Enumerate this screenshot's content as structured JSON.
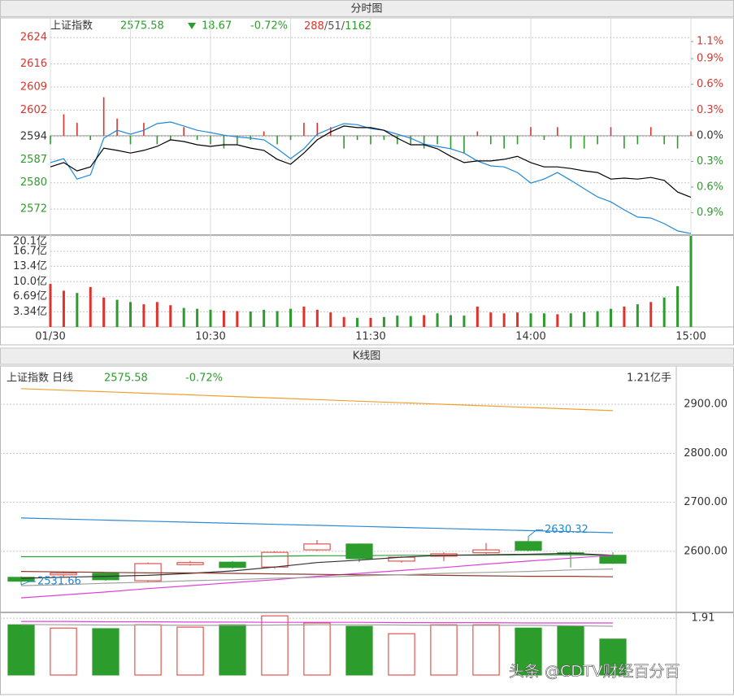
{
  "intraday_header": {
    "title": "分时图",
    "name": "上证指数",
    "price": "2575.58",
    "change": "18.67",
    "change_pct": "-0.72%",
    "up": "288",
    "flat": "51",
    "down": "1162"
  },
  "kline_header": {
    "title": "K线图",
    "name": "上证指数 日线",
    "price": "2575.58",
    "change_pct": "-0.72%",
    "volume": "1.21亿手"
  },
  "watermark": "头条 @CDTV财经百分百",
  "chart_data": [
    {
      "type": "line",
      "x": [
        0,
        5,
        10,
        15,
        20,
        25,
        30,
        35,
        40,
        45,
        50,
        55,
        60,
        65,
        70,
        75,
        80,
        85,
        90,
        95,
        100,
        105,
        110,
        115,
        120,
        125,
        130,
        135,
        140,
        145,
        150,
        155,
        160,
        165,
        170,
        175,
        180,
        185,
        190,
        195,
        200,
        205,
        210,
        215,
        220,
        225,
        230,
        235,
        240
      ],
      "xlim": [
        0,
        240
      ],
      "ylim": [
        2564.4,
        2626
      ],
      "yticks": [
        2624,
        2616,
        2609,
        2602,
        2594,
        2587,
        2580,
        2572
      ],
      "y2lim": [
        -1.151,
        1.224
      ],
      "y2ticks": [
        {
          "value": 1.1,
          "label": "1.1%"
        },
        {
          "value": 0.9,
          "label": "0.9%"
        },
        {
          "value": 0.6,
          "label": "0.6%"
        },
        {
          "value": 0.3,
          "label": "0.3%"
        },
        {
          "value": 0,
          "label": "0.0%"
        },
        {
          "value": -0.3,
          "label": "0.3%"
        },
        {
          "value": -0.6,
          "label": "0.6%"
        },
        {
          "value": -0.9,
          "label": "0.9%"
        }
      ],
      "up_color": "#e0322c",
      "down_color": "#2c9c2c",
      "flat_color": "#333333",
      "grid": true,
      "series": [
        {
          "type": "line",
          "color": "#000000",
          "values": [
            2584.8,
            2586.1,
            2583.6,
            2584.8,
            2590.5,
            2589.8,
            2589.0,
            2589.8,
            2591.0,
            2593.0,
            2592.5,
            2591.5,
            2591.0,
            2591.5,
            2591.5,
            2590.5,
            2589.8,
            2587.1,
            2585.6,
            2589.0,
            2593.0,
            2595.4,
            2597.2,
            2596.7,
            2596.7,
            2595.9,
            2593.5,
            2591.5,
            2591.5,
            2590.3,
            2588.0,
            2586.1,
            2586.6,
            2586.6,
            2587.1,
            2588.0,
            2586.1,
            2584.8,
            2584.8,
            2584.3,
            2583.6,
            2583.1,
            2581.1,
            2581.4,
            2581.1,
            2581.6,
            2580.7,
            2577.2,
            2575.58
          ]
        },
        {
          "type": "line",
          "color": "#1e88d8",
          "values": [
            2586.1,
            2587.3,
            2581.1,
            2582.4,
            2593.5,
            2595.9,
            2594.7,
            2595.9,
            2597.9,
            2598.4,
            2597.2,
            2595.9,
            2595.2,
            2594.4,
            2593.9,
            2593.5,
            2593.0,
            2590.3,
            2587.3,
            2590.3,
            2594.7,
            2596.4,
            2597.9,
            2597.6,
            2596.4,
            2595.9,
            2594.7,
            2593.5,
            2591.7,
            2591.0,
            2590.3,
            2589.0,
            2586.6,
            2585.1,
            2584.8,
            2583.1,
            2579.9,
            2581.1,
            2583.1,
            2580.7,
            2578.2,
            2575.7,
            2574.2,
            2571.8,
            2569.6,
            2569.3,
            2567.6,
            2565.4,
            2564.6
          ]
        },
        {
          "type": "bar",
          "axis": "y2",
          "values": [
            -0.1,
            0.25,
            0.15,
            -0.05,
            0.45,
            0.2,
            -0.1,
            0.15,
            -0.1,
            -0.05,
            0.1,
            -0.05,
            -0.1,
            -0.15,
            -0.1,
            -0.05,
            0.05,
            -0.1,
            -0.05,
            0.15,
            0.15,
            0.1,
            -0.15,
            -0.05,
            -0.1,
            -0.05,
            -0.1,
            -0.1,
            -0.15,
            -0.1,
            -0.15,
            -0.2,
            0.05,
            -0.1,
            -0.15,
            -0.1,
            0.1,
            -0.05,
            0.1,
            -0.15,
            -0.15,
            -0.1,
            0.1,
            -0.15,
            -0.1,
            0.1,
            -0.1,
            -0.15,
            0.05
          ]
        }
      ]
    },
    {
      "type": "bar",
      "x": [
        0,
        5,
        10,
        15,
        20,
        25,
        30,
        35,
        40,
        45,
        50,
        55,
        60,
        65,
        70,
        75,
        80,
        85,
        90,
        95,
        100,
        105,
        110,
        115,
        120,
        125,
        130,
        135,
        140,
        145,
        150,
        155,
        160,
        165,
        170,
        175,
        180,
        185,
        190,
        195,
        200,
        205,
        210,
        215,
        220,
        225,
        230,
        235,
        240
      ],
      "xlim": [
        0,
        240
      ],
      "xticks": [
        {
          "value": 0,
          "label": "01/30"
        },
        {
          "value": 30,
          "label": null
        },
        {
          "value": 60,
          "label": "10:30"
        },
        {
          "value": 90,
          "label": null
        },
        {
          "value": 120,
          "label": "11:30"
        },
        {
          "value": 150,
          "label": null
        },
        {
          "value": 180,
          "label": "14:00"
        },
        {
          "value": 210,
          "label": null
        },
        {
          "value": 240,
          "label": "15:00"
        }
      ],
      "ylim": [
        0,
        20.1
      ],
      "yticks": [
        {
          "value": 20.1,
          "label": "20.1亿"
        },
        {
          "value": 16.7,
          "label": "16.7亿"
        },
        {
          "value": 13.4,
          "label": "13.4亿"
        },
        {
          "value": 10.0,
          "label": "10.0亿"
        },
        {
          "value": 6.69,
          "label": "6.69亿"
        },
        {
          "value": 3.34,
          "label": "3.34亿"
        }
      ],
      "up_color": "#e0322c",
      "down_color": "#2c9c2c",
      "grid": true,
      "values": [
        9.5,
        8.0,
        7.5,
        8.8,
        6.5,
        6.0,
        5.5,
        5.0,
        5.5,
        4.8,
        4.2,
        4.0,
        3.8,
        3.6,
        3.5,
        3.4,
        3.8,
        3.5,
        4.0,
        4.5,
        3.8,
        3.2,
        2.2,
        2.0,
        2.0,
        2.2,
        2.5,
        2.4,
        2.6,
        3.0,
        2.6,
        2.5,
        4.5,
        3.2,
        3.0,
        3.2,
        3.0,
        3.0,
        2.8,
        3.0,
        3.3,
        3.5,
        4.0,
        4.5,
        5.0,
        5.5,
        6.5,
        9.0,
        20.1
      ]
    },
    {
      "type": "candlestick",
      "ylim": [
        2477,
        2945
      ],
      "yticks": [
        {
          "value": 2900,
          "label": "2900.00"
        },
        {
          "value": 2800,
          "label": "2800.00"
        },
        {
          "value": 2700,
          "label": "2700.00"
        },
        {
          "value": 2600,
          "label": "2600.00"
        }
      ],
      "up_color": "#e0322c",
      "down_color": "#2c9c2c",
      "annotation_color": "#1e88d8",
      "grid": true,
      "open": [
        2547,
        2552,
        2555,
        2540,
        2573,
        2578,
        2568,
        2603,
        2615,
        2580,
        2590,
        2597,
        2620,
        2597,
        2592
      ],
      "close": [
        2539,
        2556,
        2542,
        2575,
        2577,
        2567,
        2598,
        2615,
        2585,
        2588,
        2595,
        2603,
        2602,
        2595,
        2575.58
      ],
      "high": [
        2549,
        2558,
        2557,
        2577,
        2580,
        2580,
        2600,
        2623,
        2616,
        2590,
        2598,
        2617,
        2630.32,
        2600,
        2598
      ],
      "low": [
        2531.66,
        2548,
        2540,
        2538,
        2571,
        2565,
        2565,
        2601,
        2578,
        2577,
        2580,
        2595,
        2600,
        2567,
        2574
      ],
      "series": [
        {
          "type": "line",
          "color": "#f0a030",
          "values": [
            2932,
            2928.8,
            2925.6,
            2922.4,
            2919.2,
            2916,
            2912.8,
            2909.6,
            2906.4,
            2903.2,
            2900,
            2896.8,
            2893.6,
            2890.4,
            2887
          ]
        },
        {
          "type": "line",
          "color": "#2a8ad4",
          "values": [
            2668,
            2665.9,
            2663.7,
            2661.6,
            2659.4,
            2657.3,
            2655.1,
            2653,
            2650.9,
            2648.7,
            2646.6,
            2644.4,
            2642.3,
            2640.1,
            2638
          ]
        },
        {
          "type": "line",
          "color": "#2f9e3a",
          "values": [
            2589,
            2589,
            2589,
            2589,
            2589,
            2589,
            2590,
            2591,
            2591,
            2592,
            2592,
            2592,
            2593,
            2593,
            2592
          ]
        },
        {
          "type": "line",
          "color": "#333333",
          "values": [
            2545,
            2547,
            2549,
            2551,
            2555,
            2560,
            2568,
            2577,
            2582,
            2588,
            2592,
            2593,
            2594,
            2596,
            2592
          ]
        },
        {
          "type": "line",
          "color": "#e040d8",
          "values": [
            2505,
            2511,
            2517,
            2524,
            2530,
            2536,
            2542,
            2549,
            2555,
            2561,
            2567,
            2574,
            2580,
            2586,
            2592
          ]
        },
        {
          "type": "line",
          "color": "#8b3a2a",
          "values": [
            2559,
            2558,
            2557,
            2556,
            2556,
            2555,
            2554,
            2553,
            2552,
            2552,
            2551,
            2550,
            2549,
            2549,
            2548
          ]
        },
        {
          "type": "line",
          "color": "#a0a0a0",
          "values": [
            2530,
            2532,
            2535,
            2537,
            2540,
            2542,
            2545,
            2547,
            2550,
            2552,
            2555,
            2557,
            2559,
            2562,
            2564
          ]
        }
      ]
    },
    {
      "type": "bar",
      "ylim": [
        0,
        2.05
      ],
      "yticks": [
        1.91
      ],
      "grid": true,
      "values": [
        1.69,
        1.58,
        1.56,
        1.69,
        1.61,
        1.69,
        1.99,
        1.75,
        1.64,
        1.39,
        1.69,
        1.69,
        1.58,
        1.64,
        1.21
      ],
      "series": [
        {
          "type": "line",
          "color": "#e040d8",
          "values": [
            1.8,
            1.8,
            1.79,
            1.79,
            1.78,
            1.78,
            1.77,
            1.77,
            1.77,
            1.76,
            1.76,
            1.76,
            1.75,
            1.75,
            1.75
          ]
        },
        {
          "type": "line",
          "color": "#a0a0a0",
          "values": [
            1.7,
            1.69,
            1.68,
            1.68,
            1.67,
            1.67,
            1.68,
            1.69,
            1.69,
            1.68,
            1.67,
            1.67,
            1.67,
            1.66,
            1.64
          ]
        }
      ]
    }
  ]
}
